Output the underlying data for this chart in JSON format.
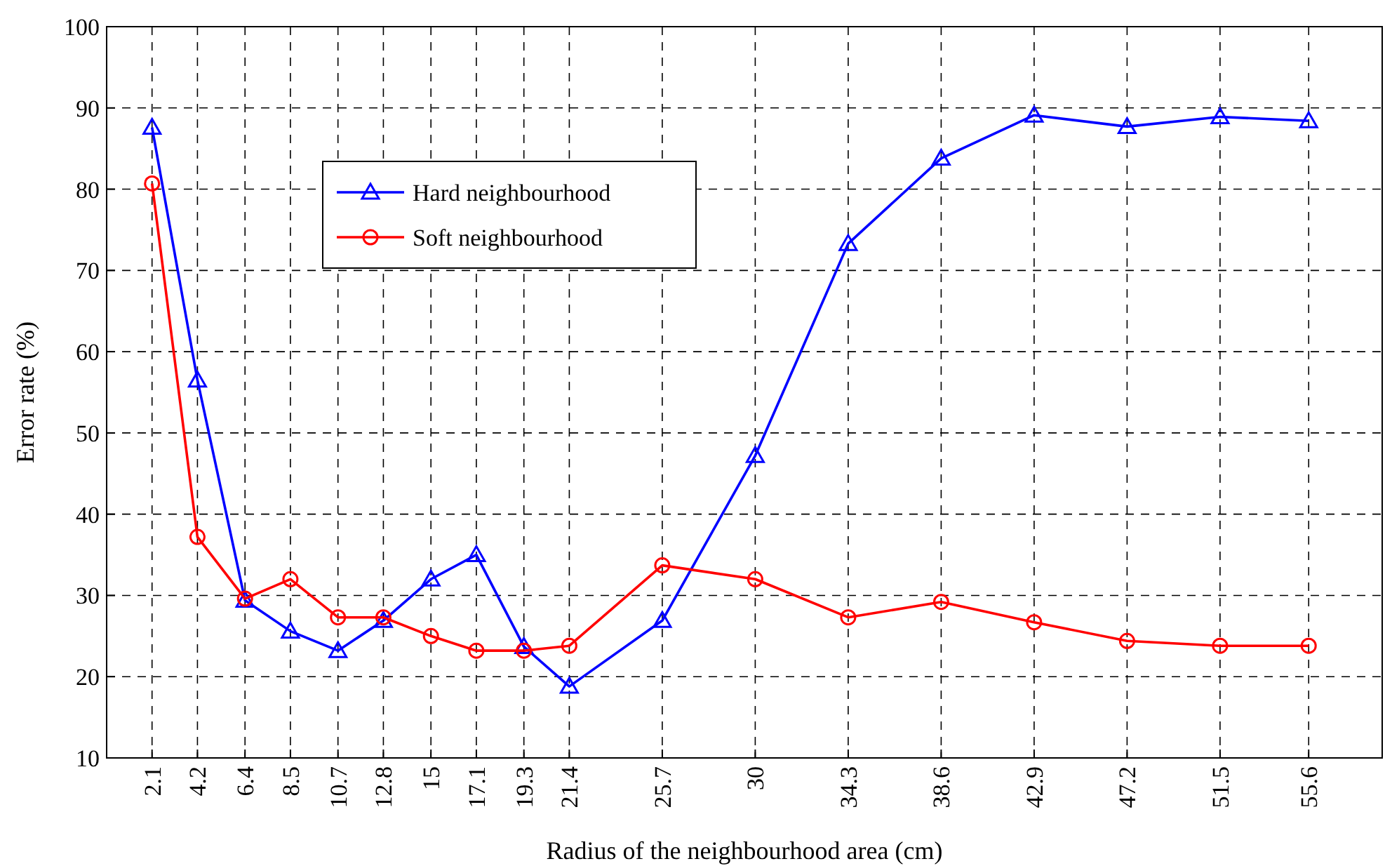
{
  "chart_data": {
    "type": "line",
    "xlabel": "Radius of the neighbourhood area (cm)",
    "ylabel": "Error rate (%)",
    "x": [
      2.1,
      4.2,
      6.4,
      8.5,
      10.7,
      12.8,
      15,
      17.1,
      19.3,
      21.4,
      25.7,
      30,
      34.3,
      38.6,
      42.9,
      47.2,
      51.5,
      55.6
    ],
    "xlim": [
      0,
      59
    ],
    "xticks": [
      2.1,
      4.2,
      6.4,
      8.5,
      10.7,
      12.8,
      15,
      17.1,
      19.3,
      21.4,
      25.7,
      30,
      34.3,
      38.6,
      42.9,
      47.2,
      51.5,
      55.6
    ],
    "ylim": [
      10,
      100
    ],
    "yticks": [
      10,
      20,
      30,
      40,
      50,
      60,
      70,
      80,
      90,
      100
    ],
    "grid": true,
    "legend": "top left",
    "line_style": "solid",
    "series": [
      {
        "name": "Hard neighbourhood",
        "color": "#0000ff",
        "marker": "triangle",
        "values": [
          87.6,
          56.5,
          29.4,
          25.6,
          23.2,
          26.9,
          32.0,
          35.0,
          23.7,
          18.8,
          26.9,
          47.2,
          73.3,
          83.8,
          89.1,
          87.7,
          88.9,
          88.4
        ]
      },
      {
        "name": "Soft neighbourhood",
        "color": "#ff0000",
        "marker": "circle",
        "values": [
          80.7,
          37.2,
          29.6,
          32.0,
          27.3,
          27.3,
          25.0,
          23.2,
          23.2,
          23.8,
          33.7,
          32.0,
          27.3,
          29.2,
          26.7,
          24.4,
          23.8,
          23.8
        ]
      }
    ]
  }
}
